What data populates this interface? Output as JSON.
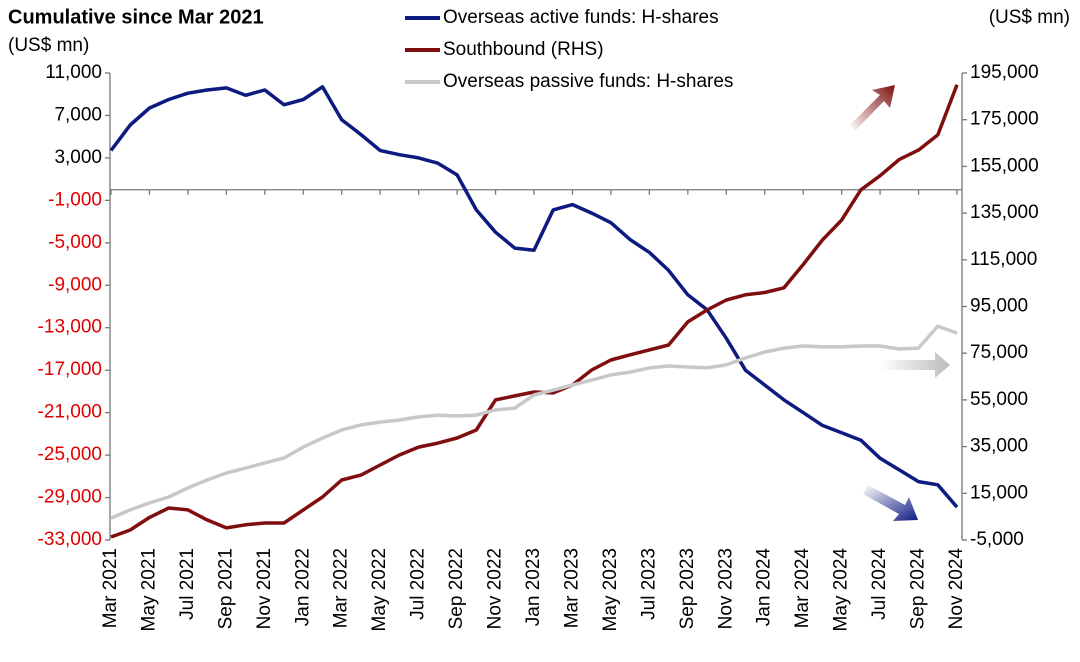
{
  "chart_data": {
    "type": "line",
    "title": "Cumulative since Mar 2021",
    "y_label": "(US$ mn)",
    "y2_label": "(US$ mn)",
    "categories": [
      "Mar 2021",
      null,
      "May 2021",
      null,
      "Jul 2021",
      null,
      "Sep 2021",
      null,
      "Nov 2021",
      null,
      "Jan 2022",
      null,
      "Mar 2022",
      null,
      "May 2022",
      null,
      "Jul 2022",
      null,
      "Sep 2022",
      null,
      "Nov 2022",
      null,
      "Jan 2023",
      null,
      "Mar 2023",
      null,
      "May 2023",
      null,
      "Jul 2023",
      null,
      "Sep 2023",
      null,
      "Nov 2023",
      null,
      "Jan 2024",
      null,
      "Mar 2024",
      null,
      "May 2024",
      null,
      "Jul 2024",
      null,
      "Sep 2024",
      null,
      "Nov 2024"
    ],
    "series": [
      {
        "name": "Overseas active funds: H-shares",
        "color": "#0d1a80",
        "axis": "y",
        "values": [
          3700,
          6100,
          7700,
          8500,
          9100,
          9400,
          9600,
          8900,
          9400,
          8000,
          8500,
          9700,
          6600,
          5200,
          3700,
          3300,
          3000,
          2500,
          1400,
          -1900,
          -4000,
          -5500,
          -5700,
          -1900,
          -1400,
          -2200,
          -3100,
          -4700,
          -5900,
          -7600,
          -9900,
          -11300,
          -14000,
          -17000,
          -18400,
          -19800,
          -21000,
          -22200,
          -22900,
          -23600,
          -25300,
          -26400,
          -27500,
          -27800,
          -29900
        ]
      },
      {
        "name": "Southbound (RHS)",
        "color": "#7f0f0f",
        "axis": "y2",
        "values": [
          -3700,
          -700,
          4700,
          8700,
          7900,
          3600,
          200,
          1500,
          2300,
          2300,
          7900,
          13400,
          20700,
          22800,
          27100,
          31400,
          34800,
          36500,
          38700,
          42100,
          55000,
          56700,
          58400,
          58000,
          61400,
          67800,
          72100,
          74300,
          76400,
          78500,
          88400,
          93500,
          97800,
          100000,
          101000,
          103000,
          113000,
          123500,
          132000,
          145000,
          151000,
          158000,
          162000,
          168500,
          190000
        ]
      },
      {
        "name": "Overseas passive funds: H-shares",
        "color": "#c8c8c8",
        "axis": "y2",
        "values": [
          4400,
          7900,
          10900,
          13400,
          17300,
          20700,
          23700,
          25800,
          28000,
          30100,
          34800,
          38700,
          42100,
          44300,
          45500,
          46400,
          47700,
          48500,
          48100,
          48500,
          50700,
          51500,
          57100,
          59200,
          61400,
          63500,
          65700,
          66900,
          68700,
          69500,
          69100,
          68700,
          70000,
          73000,
          75500,
          77200,
          78100,
          77700,
          77700,
          78100,
          78100,
          76800,
          77200,
          86600,
          83600
        ]
      }
    ],
    "ylim": [
      -33000,
      11000
    ],
    "yticks": [
      {
        "value": -33000,
        "label": "-33,000"
      },
      {
        "value": -29000,
        "label": "-29,000"
      },
      {
        "value": -25000,
        "label": "-25,000"
      },
      {
        "value": -21000,
        "label": "-21,000"
      },
      {
        "value": -17000,
        "label": "-17,000"
      },
      {
        "value": -13000,
        "label": "-13,000"
      },
      {
        "value": -9000,
        "label": "-9,000"
      },
      {
        "value": -5000,
        "label": "-5,000"
      },
      {
        "value": -1000,
        "label": "-1,000"
      },
      {
        "value": 3000,
        "label": "3,000"
      },
      {
        "value": 7000,
        "label": "7,000"
      },
      {
        "value": 11000,
        "label": "11,000"
      }
    ],
    "y2lim": [
      -5000,
      195000
    ],
    "y2ticks": [
      {
        "value": -5000,
        "label": "-5,000"
      },
      {
        "value": 15000,
        "label": "15,000"
      },
      {
        "value": 35000,
        "label": "35,000"
      },
      {
        "value": 55000,
        "label": "55,000"
      },
      {
        "value": 75000,
        "label": "75,000"
      },
      {
        "value": 95000,
        "label": "95,000"
      },
      {
        "value": 115000,
        "label": "115,000"
      },
      {
        "value": 135000,
        "label": "135,000"
      },
      {
        "value": 155000,
        "label": "155,000"
      },
      {
        "value": 175000,
        "label": "175,000"
      },
      {
        "value": 195000,
        "label": "195,000"
      }
    ],
    "negative_tick_color": "#e00000",
    "grid": false
  }
}
